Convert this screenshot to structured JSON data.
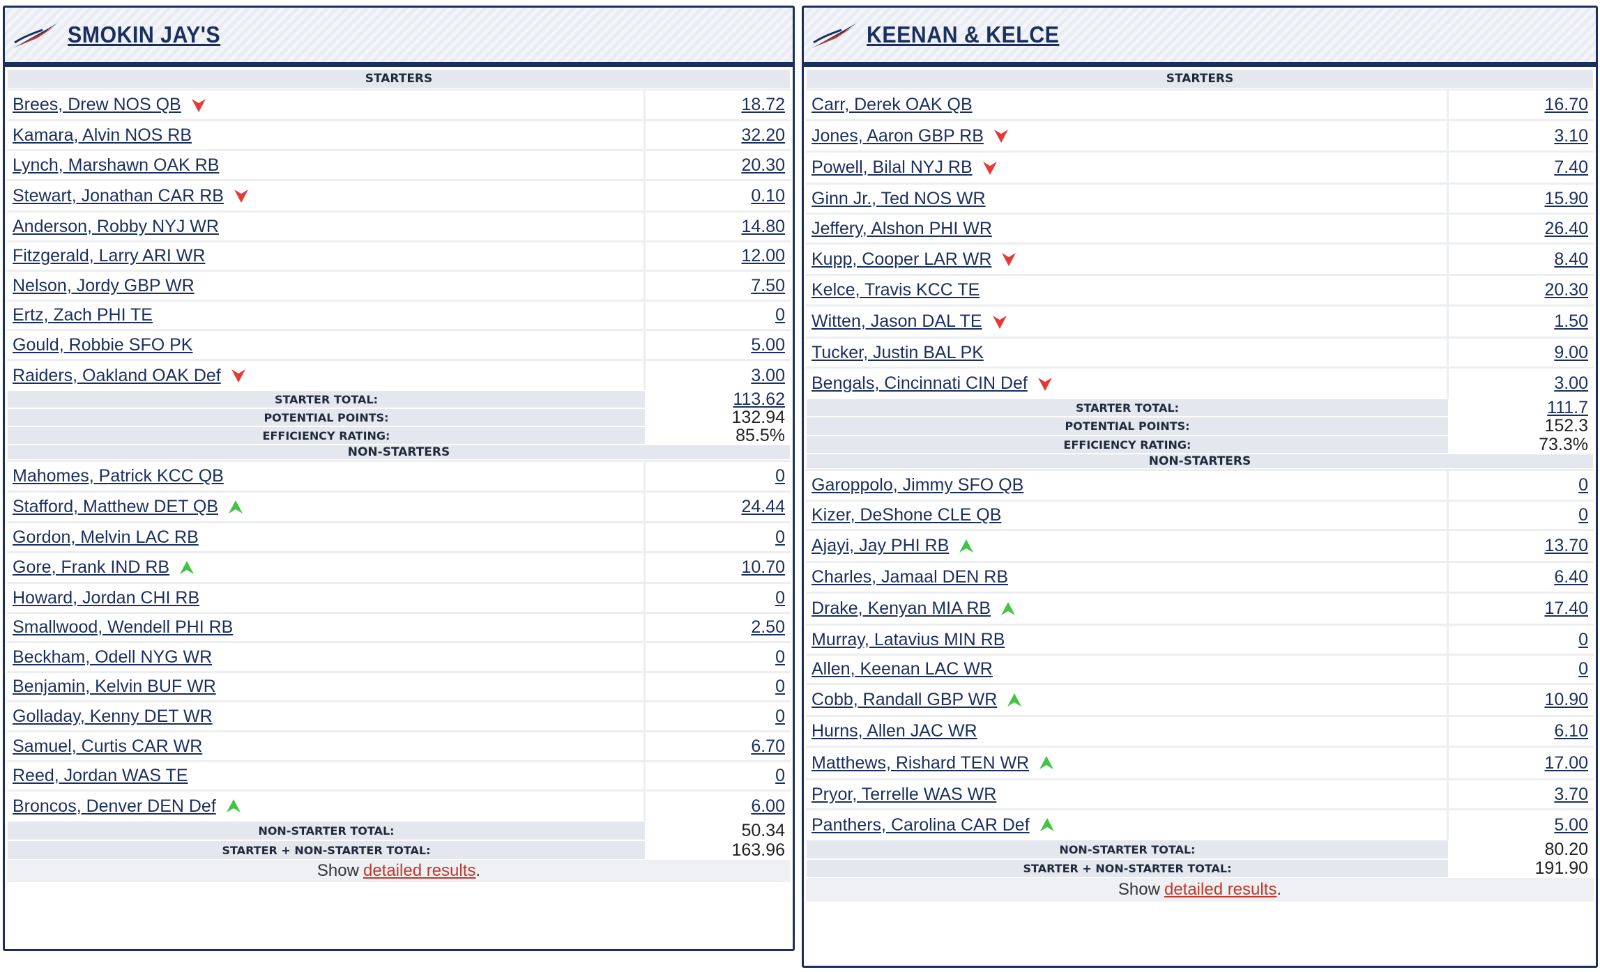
{
  "colors": {
    "navy": "#1b2f5e",
    "down": "#e53935",
    "up": "#43c343",
    "link": "#c0392b"
  },
  "teams": [
    {
      "name": "SMOKIN JAY'S",
      "starters_label": "STARTERS",
      "starters": [
        {
          "name": "Brees, Drew NOS QB",
          "pts": "18.72",
          "trend": "down"
        },
        {
          "name": "Kamara, Alvin NOS RB",
          "pts": "32.20",
          "trend": ""
        },
        {
          "name": "Lynch, Marshawn OAK RB",
          "pts": "20.30",
          "trend": ""
        },
        {
          "name": "Stewart, Jonathan CAR RB",
          "pts": "0.10",
          "trend": "down"
        },
        {
          "name": "Anderson, Robby NYJ WR",
          "pts": "14.80",
          "trend": ""
        },
        {
          "name": "Fitzgerald, Larry ARI WR",
          "pts": "12.00",
          "trend": ""
        },
        {
          "name": "Nelson, Jordy GBP WR",
          "pts": "7.50",
          "trend": ""
        },
        {
          "name": "Ertz, Zach PHI TE",
          "pts": "0",
          "trend": ""
        },
        {
          "name": "Gould, Robbie SFO PK",
          "pts": "5.00",
          "trend": ""
        },
        {
          "name": "Raiders, Oakland OAK Def",
          "pts": "3.00",
          "trend": "down"
        }
      ],
      "starter_total_label": "STARTER TOTAL:",
      "starter_total": "113.62",
      "potential_label": "POTENTIAL POINTS:",
      "potential": "132.94",
      "efficiency_label": "EFFICIENCY RATING:",
      "efficiency": "85.5%",
      "nonstarters_label": "NON-STARTERS",
      "nonstarters": [
        {
          "name": "Mahomes, Patrick KCC QB",
          "pts": "0",
          "trend": ""
        },
        {
          "name": "Stafford, Matthew DET QB",
          "pts": "24.44",
          "trend": "up"
        },
        {
          "name": "Gordon, Melvin LAC RB",
          "pts": "0",
          "trend": ""
        },
        {
          "name": "Gore, Frank IND RB",
          "pts": "10.70",
          "trend": "up"
        },
        {
          "name": "Howard, Jordan CHI RB",
          "pts": "0",
          "trend": ""
        },
        {
          "name": "Smallwood, Wendell PHI RB",
          "pts": "2.50",
          "trend": ""
        },
        {
          "name": "Beckham, Odell NYG WR",
          "pts": "0",
          "trend": ""
        },
        {
          "name": "Benjamin, Kelvin BUF WR",
          "pts": "0",
          "trend": ""
        },
        {
          "name": "Golladay, Kenny DET WR",
          "pts": "0",
          "trend": ""
        },
        {
          "name": "Samuel, Curtis CAR WR",
          "pts": "6.70",
          "trend": ""
        },
        {
          "name": "Reed, Jordan WAS TE",
          "pts": "0",
          "trend": ""
        },
        {
          "name": "Broncos, Denver DEN Def",
          "pts": "6.00",
          "trend": "up"
        }
      ],
      "nonstarter_total_label": "NON-STARTER TOTAL:",
      "nonstarter_total": "50.34",
      "combined_label": "STARTER + NON-STARTER TOTAL:",
      "combined_total": "163.96",
      "show_text": "Show",
      "show_link": "detailed results",
      "show_period": "."
    },
    {
      "name": "KEENAN & KELCE",
      "starters_label": "STARTERS",
      "starters": [
        {
          "name": "Carr, Derek OAK QB",
          "pts": "16.70",
          "trend": ""
        },
        {
          "name": "Jones, Aaron GBP RB",
          "pts": "3.10",
          "trend": "down"
        },
        {
          "name": "Powell, Bilal NYJ RB",
          "pts": "7.40",
          "trend": "down"
        },
        {
          "name": "Ginn Jr., Ted NOS WR",
          "pts": "15.90",
          "trend": ""
        },
        {
          "name": "Jeffery, Alshon PHI WR",
          "pts": "26.40",
          "trend": ""
        },
        {
          "name": "Kupp, Cooper LAR WR",
          "pts": "8.40",
          "trend": "down"
        },
        {
          "name": "Kelce, Travis KCC TE",
          "pts": "20.30",
          "trend": ""
        },
        {
          "name": "Witten, Jason DAL TE",
          "pts": "1.50",
          "trend": "down"
        },
        {
          "name": "Tucker, Justin BAL PK",
          "pts": "9.00",
          "trend": ""
        },
        {
          "name": "Bengals, Cincinnati CIN Def",
          "pts": "3.00",
          "trend": "down"
        }
      ],
      "starter_total_label": "STARTER TOTAL:",
      "starter_total": "111.7",
      "potential_label": "POTENTIAL POINTS:",
      "potential": "152.3",
      "efficiency_label": "EFFICIENCY RATING:",
      "efficiency": "73.3%",
      "nonstarters_label": "NON-STARTERS",
      "nonstarters": [
        {
          "name": "Garoppolo, Jimmy SFO QB",
          "pts": "0",
          "trend": ""
        },
        {
          "name": "Kizer, DeShone CLE QB",
          "pts": "0",
          "trend": ""
        },
        {
          "name": "Ajayi, Jay PHI RB",
          "pts": "13.70",
          "trend": "up"
        },
        {
          "name": "Charles, Jamaal DEN RB",
          "pts": "6.40",
          "trend": ""
        },
        {
          "name": "Drake, Kenyan MIA RB",
          "pts": "17.40",
          "trend": "up"
        },
        {
          "name": "Murray, Latavius MIN RB",
          "pts": "0",
          "trend": ""
        },
        {
          "name": "Allen, Keenan LAC WR",
          "pts": "0",
          "trend": ""
        },
        {
          "name": "Cobb, Randall GBP WR",
          "pts": "10.90",
          "trend": "up"
        },
        {
          "name": "Hurns, Allen JAC WR",
          "pts": "6.10",
          "trend": ""
        },
        {
          "name": "Matthews, Rishard TEN WR",
          "pts": "17.00",
          "trend": "up"
        },
        {
          "name": "Pryor, Terrelle WAS WR",
          "pts": "3.70",
          "trend": ""
        },
        {
          "name": "Panthers, Carolina CAR Def",
          "pts": "5.00",
          "trend": "up"
        }
      ],
      "nonstarter_total_label": "NON-STARTER TOTAL:",
      "nonstarter_total": "80.20",
      "combined_label": "STARTER + NON-STARTER TOTAL:",
      "combined_total": "191.90",
      "show_text": "Show",
      "show_link": "detailed results",
      "show_period": "."
    }
  ]
}
